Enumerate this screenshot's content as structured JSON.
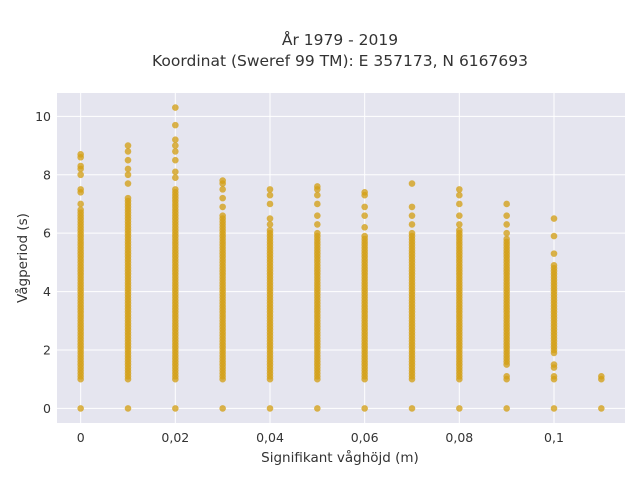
{
  "chart_data": {
    "type": "scatter",
    "title_line1": "År 1979 - 2019",
    "title_line2": "Koordinat (Sweref 99 TM): E 357173, N 6167693",
    "xlabel": "Signifikant våghöjd (m)",
    "ylabel": "Vågperiod (s)",
    "xlim": [
      -0.005,
      0.115
    ],
    "ylim": [
      -0.5,
      10.8
    ],
    "x_ticks": [
      0,
      0.02,
      0.04,
      0.06,
      0.08,
      0.1
    ],
    "x_tick_labels": [
      "0",
      "0,02",
      "0,04",
      "0,06",
      "0,08",
      "0,1"
    ],
    "y_ticks": [
      0,
      2,
      4,
      6,
      8,
      10
    ],
    "y_tick_labels": [
      "0",
      "2",
      "4",
      "6",
      "8",
      "10"
    ],
    "grid": true,
    "marker_color": "#d4a017",
    "plot_background": "#e5e5ef",
    "columns": [
      {
        "x": 0.0,
        "zero": true,
        "dense_min": 1.0,
        "dense_max": 6.8,
        "outliers": [
          7.0,
          7.4,
          7.5,
          8.0,
          8.2,
          8.3,
          8.6,
          8.7
        ]
      },
      {
        "x": 0.01,
        "zero": true,
        "dense_min": 1.0,
        "dense_max": 7.2,
        "outliers": [
          7.7,
          8.0,
          8.2,
          8.5,
          8.8,
          9.0
        ]
      },
      {
        "x": 0.02,
        "zero": true,
        "dense_min": 1.0,
        "dense_max": 7.5,
        "outliers": [
          7.9,
          8.1,
          8.5,
          8.8,
          9.0,
          9.2,
          9.7,
          10.3
        ]
      },
      {
        "x": 0.03,
        "zero": true,
        "dense_min": 1.0,
        "dense_max": 6.6,
        "outliers": [
          6.9,
          7.2,
          7.5,
          7.7,
          7.8
        ]
      },
      {
        "x": 0.04,
        "zero": true,
        "dense_min": 1.0,
        "dense_max": 6.1,
        "outliers": [
          6.3,
          6.5,
          7.0,
          7.3,
          7.5
        ]
      },
      {
        "x": 0.05,
        "zero": true,
        "dense_min": 1.0,
        "dense_max": 6.0,
        "outliers": [
          6.3,
          6.6,
          7.0,
          7.3,
          7.5,
          7.6
        ]
      },
      {
        "x": 0.06,
        "zero": true,
        "dense_min": 1.0,
        "dense_max": 5.9,
        "outliers": [
          6.2,
          6.6,
          6.9,
          7.3,
          7.4
        ]
      },
      {
        "x": 0.07,
        "zero": true,
        "dense_min": 1.0,
        "dense_max": 6.0,
        "outliers": [
          6.3,
          6.6,
          6.9,
          7.7
        ]
      },
      {
        "x": 0.08,
        "zero": true,
        "dense_min": 1.0,
        "dense_max": 6.1,
        "outliers": [
          6.3,
          6.6,
          7.0,
          7.3,
          7.5
        ]
      },
      {
        "x": 0.09,
        "zero": true,
        "dense_min": 1.5,
        "dense_max": 5.8,
        "outliers": [
          1.0,
          1.1,
          6.0,
          6.3,
          6.6,
          7.0
        ]
      },
      {
        "x": 0.1,
        "zero": true,
        "dense_min": 1.9,
        "dense_max": 4.9,
        "outliers": [
          1.0,
          1.1,
          1.4,
          1.5,
          5.3,
          5.9,
          6.5
        ]
      },
      {
        "x": 0.11,
        "zero": true,
        "dense_min": 1.0,
        "dense_max": 1.1,
        "outliers": []
      }
    ]
  }
}
